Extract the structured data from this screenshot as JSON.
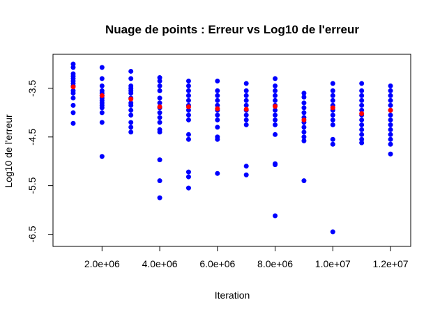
{
  "chart_data": {
    "type": "scatter",
    "title": "Nuage de points : Erreur vs Log10 de l'erreur",
    "xlabel": "Iteration",
    "ylabel": "Log10 de l'erreur",
    "xlim": [
      300000,
      12700000
    ],
    "ylim": [
      -6.75,
      -2.8
    ],
    "x_ticks": [
      2000000,
      4000000,
      6000000,
      8000000,
      10000000,
      12000000
    ],
    "x_tick_labels": [
      "2.0e+06",
      "4.0e+06",
      "6.0e+06",
      "8.0e+06",
      "1.0e+07",
      "1.2e+07"
    ],
    "y_ticks": [
      -3.5,
      -4.5,
      -5.5,
      -6.5
    ],
    "y_tick_labels": [
      "-3.5",
      "-4.5",
      "-5.5",
      "-6.5"
    ],
    "grid": false,
    "legend": "none",
    "series": [
      {
        "color": "#0000FF",
        "points": [
          [
            1000000,
            -3.0
          ],
          [
            1000000,
            -3.07
          ],
          [
            1000000,
            -3.2
          ],
          [
            1000000,
            -3.25
          ],
          [
            1000000,
            -3.3
          ],
          [
            1000000,
            -3.35
          ],
          [
            1000000,
            -3.4
          ],
          [
            1000000,
            -3.45
          ],
          [
            1000000,
            -3.55
          ],
          [
            1000000,
            -3.6
          ],
          [
            1000000,
            -3.7
          ],
          [
            1000000,
            -3.85
          ],
          [
            1000000,
            -4.0
          ],
          [
            1000000,
            -4.22
          ],
          [
            2000000,
            -3.07
          ],
          [
            2000000,
            -3.3
          ],
          [
            2000000,
            -3.45
          ],
          [
            2000000,
            -3.55
          ],
          [
            2000000,
            -3.6
          ],
          [
            2000000,
            -3.65
          ],
          [
            2000000,
            -3.7
          ],
          [
            2000000,
            -3.75
          ],
          [
            2000000,
            -3.8
          ],
          [
            2000000,
            -3.85
          ],
          [
            2000000,
            -3.9
          ],
          [
            2000000,
            -4.0
          ],
          [
            2000000,
            -4.2
          ],
          [
            2000000,
            -4.9
          ],
          [
            3000000,
            -3.15
          ],
          [
            3000000,
            -3.3
          ],
          [
            3000000,
            -3.45
          ],
          [
            3000000,
            -3.5
          ],
          [
            3000000,
            -3.55
          ],
          [
            3000000,
            -3.6
          ],
          [
            3000000,
            -3.7
          ],
          [
            3000000,
            -3.8
          ],
          [
            3000000,
            -3.85
          ],
          [
            3000000,
            -3.95
          ],
          [
            3000000,
            -4.05
          ],
          [
            3000000,
            -4.2
          ],
          [
            3000000,
            -4.3
          ],
          [
            3000000,
            -4.4
          ],
          [
            4000000,
            -3.28
          ],
          [
            4000000,
            -3.35
          ],
          [
            4000000,
            -3.45
          ],
          [
            4000000,
            -3.55
          ],
          [
            4000000,
            -3.7
          ],
          [
            4000000,
            -3.8
          ],
          [
            4000000,
            -3.9
          ],
          [
            4000000,
            -4.0
          ],
          [
            4000000,
            -4.1
          ],
          [
            4000000,
            -4.2
          ],
          [
            4000000,
            -4.35
          ],
          [
            4000000,
            -4.4
          ],
          [
            4000000,
            -4.97
          ],
          [
            4000000,
            -5.4
          ],
          [
            4000000,
            -5.75
          ],
          [
            5000000,
            -3.35
          ],
          [
            5000000,
            -3.45
          ],
          [
            5000000,
            -3.55
          ],
          [
            5000000,
            -3.65
          ],
          [
            5000000,
            -3.75
          ],
          [
            5000000,
            -3.85
          ],
          [
            5000000,
            -3.95
          ],
          [
            5000000,
            -4.05
          ],
          [
            5000000,
            -4.15
          ],
          [
            5000000,
            -4.45
          ],
          [
            5000000,
            -4.55
          ],
          [
            5000000,
            -5.22
          ],
          [
            5000000,
            -5.32
          ],
          [
            5000000,
            -5.55
          ],
          [
            6000000,
            -3.35
          ],
          [
            6000000,
            -3.55
          ],
          [
            6000000,
            -3.65
          ],
          [
            6000000,
            -3.75
          ],
          [
            6000000,
            -3.85
          ],
          [
            6000000,
            -3.95
          ],
          [
            6000000,
            -4.05
          ],
          [
            6000000,
            -4.15
          ],
          [
            6000000,
            -4.3
          ],
          [
            6000000,
            -4.5
          ],
          [
            6000000,
            -4.55
          ],
          [
            6000000,
            -5.25
          ],
          [
            7000000,
            -3.4
          ],
          [
            7000000,
            -3.55
          ],
          [
            7000000,
            -3.65
          ],
          [
            7000000,
            -3.75
          ],
          [
            7000000,
            -3.85
          ],
          [
            7000000,
            -3.95
          ],
          [
            7000000,
            -4.05
          ],
          [
            7000000,
            -4.15
          ],
          [
            7000000,
            -4.25
          ],
          [
            7000000,
            -5.1
          ],
          [
            7000000,
            -5.28
          ],
          [
            8000000,
            -3.3
          ],
          [
            8000000,
            -3.45
          ],
          [
            8000000,
            -3.55
          ],
          [
            8000000,
            -3.65
          ],
          [
            8000000,
            -3.75
          ],
          [
            8000000,
            -3.85
          ],
          [
            8000000,
            -3.95
          ],
          [
            8000000,
            -4.05
          ],
          [
            8000000,
            -4.15
          ],
          [
            8000000,
            -4.25
          ],
          [
            8000000,
            -4.45
          ],
          [
            8000000,
            -5.05
          ],
          [
            8000000,
            -5.07
          ],
          [
            8000000,
            -6.12
          ],
          [
            9000000,
            -3.6
          ],
          [
            9000000,
            -3.68
          ],
          [
            9000000,
            -3.8
          ],
          [
            9000000,
            -3.9
          ],
          [
            9000000,
            -4.0
          ],
          [
            9000000,
            -4.1
          ],
          [
            9000000,
            -4.2
          ],
          [
            9000000,
            -4.3
          ],
          [
            9000000,
            -4.4
          ],
          [
            9000000,
            -4.5
          ],
          [
            9000000,
            -4.58
          ],
          [
            9000000,
            -5.4
          ],
          [
            10000000,
            -3.4
          ],
          [
            10000000,
            -3.55
          ],
          [
            10000000,
            -3.65
          ],
          [
            10000000,
            -3.75
          ],
          [
            10000000,
            -3.85
          ],
          [
            10000000,
            -3.95
          ],
          [
            10000000,
            -4.05
          ],
          [
            10000000,
            -4.15
          ],
          [
            10000000,
            -4.25
          ],
          [
            10000000,
            -4.55
          ],
          [
            10000000,
            -4.65
          ],
          [
            10000000,
            -6.45
          ],
          [
            11000000,
            -3.4
          ],
          [
            11000000,
            -3.55
          ],
          [
            11000000,
            -3.65
          ],
          [
            11000000,
            -3.75
          ],
          [
            11000000,
            -3.85
          ],
          [
            11000000,
            -3.95
          ],
          [
            11000000,
            -4.05
          ],
          [
            11000000,
            -4.15
          ],
          [
            11000000,
            -4.25
          ],
          [
            11000000,
            -4.35
          ],
          [
            11000000,
            -4.45
          ],
          [
            11000000,
            -4.55
          ],
          [
            11000000,
            -4.62
          ],
          [
            12000000,
            -3.45
          ],
          [
            12000000,
            -3.55
          ],
          [
            12000000,
            -3.65
          ],
          [
            12000000,
            -3.75
          ],
          [
            12000000,
            -3.85
          ],
          [
            12000000,
            -3.95
          ],
          [
            12000000,
            -4.05
          ],
          [
            12000000,
            -4.15
          ],
          [
            12000000,
            -4.25
          ],
          [
            12000000,
            -4.35
          ],
          [
            12000000,
            -4.45
          ],
          [
            12000000,
            -4.55
          ],
          [
            12000000,
            -4.65
          ],
          [
            12000000,
            -4.85
          ]
        ]
      },
      {
        "color": "#FF0000",
        "points": [
          [
            1000000,
            -3.47
          ],
          [
            2000000,
            -3.65
          ],
          [
            3000000,
            -3.72
          ],
          [
            4000000,
            -3.88
          ],
          [
            5000000,
            -3.88
          ],
          [
            6000000,
            -3.92
          ],
          [
            7000000,
            -3.93
          ],
          [
            8000000,
            -3.87
          ],
          [
            9000000,
            -4.15
          ],
          [
            10000000,
            -3.9
          ],
          [
            11000000,
            -4.02
          ],
          [
            12000000,
            -3.95
          ]
        ]
      }
    ]
  }
}
